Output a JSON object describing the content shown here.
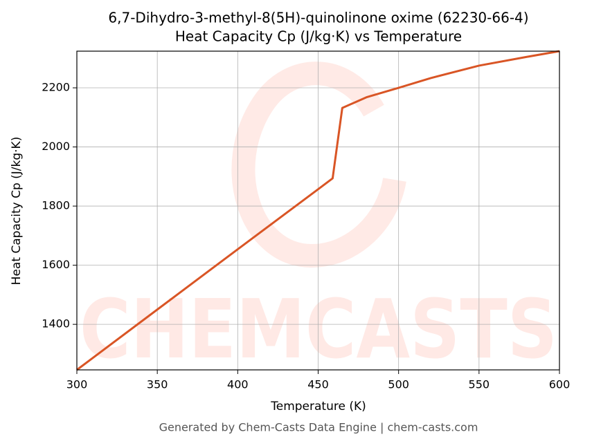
{
  "chart_data": {
    "type": "line",
    "title": "6,7-Dihydro-3-methyl-8(5H)-quinolinone oxime (62230-66-4)",
    "subtitle": "Heat Capacity Cp (J/kg·K) vs Temperature",
    "xlabel": "Temperature (K)",
    "ylabel": "Heat Capacity Cp (J/kg·K)",
    "footer": "Generated by Chem-Casts Data Engine | chem-casts.com",
    "watermark": "CHEMCASTS",
    "x": [
      300,
      350,
      400,
      450,
      459,
      465,
      480,
      500,
      520,
      550,
      580,
      600
    ],
    "series": [
      {
        "name": "Cp",
        "color": "#d95525",
        "values": [
          1246,
          1450,
          1654,
          1857,
          1894,
          2132,
          2168,
          2200,
          2233,
          2275,
          2305,
          2324
        ]
      }
    ],
    "xlim": [
      300,
      600
    ],
    "xticks": [
      300,
      350,
      400,
      450,
      500,
      550,
      600
    ],
    "ylim": [
      1246,
      2324
    ],
    "yticks": [
      1400,
      1600,
      1800,
      2000,
      2200
    ],
    "grid": true
  }
}
